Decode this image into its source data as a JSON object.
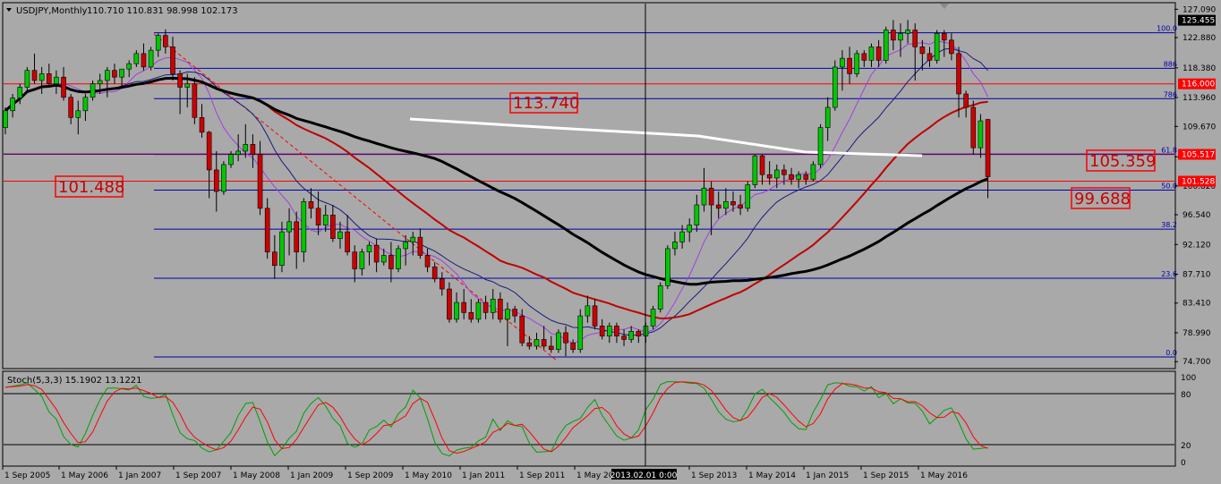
{
  "header": {
    "symbol_text": "USDJPY,Monthly",
    "ohlc_text": "110.710 110.831 98.998 102.173"
  },
  "oscillator": {
    "title": "Stoch(5,3,3) 15.1902 13.1221",
    "levels": [
      {
        "label": "100",
        "value": 100,
        "line": false
      },
      {
        "label": "80",
        "value": 80,
        "line": true
      },
      {
        "label": "20",
        "value": 20,
        "line": true
      },
      {
        "label": "0",
        "value": 0,
        "line": false
      }
    ]
  },
  "crosshair_label": "2013.02.01 0:00",
  "chart_data": {
    "type": "candlestick",
    "y_ticks": [
      "127.090",
      "122.880",
      "118.380",
      "113.960",
      "109.670",
      "105.150",
      "100.820",
      "96.540",
      "92.120",
      "87.710",
      "83.410",
      "78.990",
      "74.700"
    ],
    "ylim": [
      73.8,
      127.8
    ],
    "x_ticks": [
      "1 Sep 2005",
      "1 May 2006",
      "1 Jan 2007",
      "1 Sep 2007",
      "1 May 2008",
      "1 Jan 2009",
      "1 Sep 2009",
      "1 May 2010",
      "1 Jan 2011",
      "1 Sep 2011",
      "1 May 20",
      "1 Sep 2013",
      "1 May 2014",
      "1 Jan 2015",
      "1 Sep 2015",
      "1 May 2016"
    ],
    "candles": [
      {
        "o": 109.5,
        "h": 112.5,
        "l": 108.5,
        "c": 112.0
      },
      {
        "o": 112.0,
        "h": 114.5,
        "l": 111.0,
        "c": 113.9
      },
      {
        "o": 113.9,
        "h": 116.0,
        "l": 113.0,
        "c": 115.5
      },
      {
        "o": 115.5,
        "h": 118.5,
        "l": 115.0,
        "c": 118.0
      },
      {
        "o": 118.0,
        "h": 120.5,
        "l": 116.0,
        "c": 116.5
      },
      {
        "o": 116.5,
        "h": 118.5,
        "l": 114.5,
        "c": 117.5
      },
      {
        "o": 117.5,
        "h": 119.0,
        "l": 115.5,
        "c": 116.0
      },
      {
        "o": 116.0,
        "h": 118.0,
        "l": 114.5,
        "c": 117.0
      },
      {
        "o": 117.0,
        "h": 118.5,
        "l": 113.5,
        "c": 114.0
      },
      {
        "o": 114.0,
        "h": 114.5,
        "l": 110.0,
        "c": 111.0
      },
      {
        "o": 111.0,
        "h": 113.5,
        "l": 108.5,
        "c": 112.0
      },
      {
        "o": 112.0,
        "h": 114.5,
        "l": 110.5,
        "c": 114.0
      },
      {
        "o": 114.0,
        "h": 116.5,
        "l": 113.5,
        "c": 116.0
      },
      {
        "o": 116.0,
        "h": 117.5,
        "l": 114.5,
        "c": 116.5
      },
      {
        "o": 116.5,
        "h": 118.5,
        "l": 114.0,
        "c": 118.0
      },
      {
        "o": 118.0,
        "h": 119.0,
        "l": 116.0,
        "c": 117.0
      },
      {
        "o": 117.0,
        "h": 118.0,
        "l": 115.5,
        "c": 118.2
      },
      {
        "o": 118.2,
        "h": 119.5,
        "l": 117.0,
        "c": 119.0
      },
      {
        "o": 119.0,
        "h": 121.0,
        "l": 118.5,
        "c": 120.5
      },
      {
        "o": 120.5,
        "h": 122.0,
        "l": 118.0,
        "c": 118.5
      },
      {
        "o": 118.5,
        "h": 121.5,
        "l": 118.0,
        "c": 121.0
      },
      {
        "o": 121.0,
        "h": 123.5,
        "l": 120.0,
        "c": 123.2
      },
      {
        "o": 123.2,
        "h": 124.1,
        "l": 120.5,
        "c": 121.5
      },
      {
        "o": 121.5,
        "h": 123.0,
        "l": 116.5,
        "c": 117.5
      },
      {
        "o": 117.5,
        "h": 118.0,
        "l": 111.5,
        "c": 115.5
      },
      {
        "o": 115.5,
        "h": 117.5,
        "l": 112.5,
        "c": 116.0
      },
      {
        "o": 116.0,
        "h": 117.0,
        "l": 110.0,
        "c": 111.0
      },
      {
        "o": 111.0,
        "h": 113.0,
        "l": 108.0,
        "c": 108.8
      },
      {
        "o": 108.8,
        "h": 109.0,
        "l": 99.0,
        "c": 103.2
      },
      {
        "o": 103.2,
        "h": 106.0,
        "l": 97.0,
        "c": 100.0
      },
      {
        "o": 100.0,
        "h": 104.5,
        "l": 99.5,
        "c": 104.0
      },
      {
        "o": 104.0,
        "h": 106.0,
        "l": 103.5,
        "c": 105.5
      },
      {
        "o": 105.5,
        "h": 108.5,
        "l": 104.5,
        "c": 106.0
      },
      {
        "o": 106.0,
        "h": 110.0,
        "l": 105.0,
        "c": 107.0
      },
      {
        "o": 107.0,
        "h": 108.5,
        "l": 103.5,
        "c": 105.5
      },
      {
        "o": 105.5,
        "h": 107.5,
        "l": 96.5,
        "c": 97.5
      },
      {
        "o": 97.5,
        "h": 99.0,
        "l": 90.0,
        "c": 91.0
      },
      {
        "o": 91.0,
        "h": 93.5,
        "l": 87.0,
        "c": 89.0
      },
      {
        "o": 89.0,
        "h": 95.5,
        "l": 88.0,
        "c": 94.0
      },
      {
        "o": 94.0,
        "h": 97.5,
        "l": 90.5,
        "c": 95.5
      },
      {
        "o": 95.5,
        "h": 97.0,
        "l": 88.5,
        "c": 91.0
      },
      {
        "o": 91.0,
        "h": 99.0,
        "l": 89.5,
        "c": 98.5
      },
      {
        "o": 98.5,
        "h": 100.5,
        "l": 96.0,
        "c": 97.5
      },
      {
        "o": 97.5,
        "h": 100.0,
        "l": 93.5,
        "c": 95.0
      },
      {
        "o": 95.0,
        "h": 98.0,
        "l": 94.0,
        "c": 96.5
      },
      {
        "o": 96.5,
        "h": 98.0,
        "l": 92.5,
        "c": 93.0
      },
      {
        "o": 93.0,
        "h": 95.5,
        "l": 91.5,
        "c": 94.0
      },
      {
        "o": 94.0,
        "h": 96.5,
        "l": 90.5,
        "c": 91.0
      },
      {
        "o": 91.0,
        "h": 92.0,
        "l": 86.5,
        "c": 88.5
      },
      {
        "o": 88.5,
        "h": 91.5,
        "l": 87.5,
        "c": 91.0
      },
      {
        "o": 91.0,
        "h": 92.5,
        "l": 89.0,
        "c": 92.0
      },
      {
        "o": 92.0,
        "h": 93.0,
        "l": 88.0,
        "c": 89.5
      },
      {
        "o": 89.5,
        "h": 91.5,
        "l": 89.0,
        "c": 90.5
      },
      {
        "o": 90.5,
        "h": 92.5,
        "l": 86.5,
        "c": 88.5
      },
      {
        "o": 88.5,
        "h": 92.0,
        "l": 88.0,
        "c": 91.5
      },
      {
        "o": 91.5,
        "h": 93.5,
        "l": 89.0,
        "c": 92.5
      },
      {
        "o": 92.5,
        "h": 94.0,
        "l": 90.5,
        "c": 93.2
      },
      {
        "o": 93.2,
        "h": 94.5,
        "l": 90.0,
        "c": 90.5
      },
      {
        "o": 90.5,
        "h": 91.5,
        "l": 88.0,
        "c": 88.8
      },
      {
        "o": 88.8,
        "h": 89.5,
        "l": 86.5,
        "c": 87.0
      },
      {
        "o": 87.0,
        "h": 88.0,
        "l": 84.5,
        "c": 85.5
      },
      {
        "o": 85.5,
        "h": 86.5,
        "l": 80.5,
        "c": 81.0
      },
      {
        "o": 81.0,
        "h": 85.0,
        "l": 80.5,
        "c": 83.5
      },
      {
        "o": 83.5,
        "h": 85.5,
        "l": 81.0,
        "c": 82.0
      },
      {
        "o": 82.0,
        "h": 84.0,
        "l": 80.5,
        "c": 81.0
      },
      {
        "o": 81.0,
        "h": 84.0,
        "l": 80.5,
        "c": 83.5
      },
      {
        "o": 83.5,
        "h": 84.5,
        "l": 81.0,
        "c": 82.0
      },
      {
        "o": 82.0,
        "h": 85.5,
        "l": 81.0,
        "c": 84.0
      },
      {
        "o": 84.0,
        "h": 85.0,
        "l": 80.5,
        "c": 81.0
      },
      {
        "o": 81.0,
        "h": 83.5,
        "l": 77.0,
        "c": 82.5
      },
      {
        "o": 82.5,
        "h": 83.0,
        "l": 80.5,
        "c": 81.5
      },
      {
        "o": 81.5,
        "h": 82.5,
        "l": 77.0,
        "c": 77.5
      },
      {
        "o": 77.5,
        "h": 78.5,
        "l": 76.5,
        "c": 77.0
      },
      {
        "o": 77.0,
        "h": 79.0,
        "l": 76.5,
        "c": 78.0
      },
      {
        "o": 78.0,
        "h": 80.0,
        "l": 76.5,
        "c": 77.0
      },
      {
        "o": 77.0,
        "h": 78.5,
        "l": 76.0,
        "c": 76.5
      },
      {
        "o": 76.5,
        "h": 79.5,
        "l": 76.0,
        "c": 79.0
      },
      {
        "o": 79.0,
        "h": 80.0,
        "l": 75.5,
        "c": 77.5
      },
      {
        "o": 77.5,
        "h": 78.0,
        "l": 76.0,
        "c": 76.5
      },
      {
        "o": 76.5,
        "h": 82.5,
        "l": 76.0,
        "c": 81.5
      },
      {
        "o": 81.5,
        "h": 84.5,
        "l": 80.5,
        "c": 83.0
      },
      {
        "o": 83.0,
        "h": 84.0,
        "l": 79.5,
        "c": 80.0
      },
      {
        "o": 80.0,
        "h": 81.0,
        "l": 78.0,
        "c": 78.5
      },
      {
        "o": 78.5,
        "h": 80.5,
        "l": 77.5,
        "c": 80.0
      },
      {
        "o": 80.0,
        "h": 80.5,
        "l": 77.5,
        "c": 78.5
      },
      {
        "o": 78.5,
        "h": 79.5,
        "l": 77.0,
        "c": 78.0
      },
      {
        "o": 78.0,
        "h": 80.0,
        "l": 77.5,
        "c": 79.2
      },
      {
        "o": 79.2,
        "h": 79.5,
        "l": 77.5,
        "c": 78.5
      },
      {
        "o": 78.5,
        "h": 80.5,
        "l": 77.5,
        "c": 80.0
      },
      {
        "o": 80.0,
        "h": 83.0,
        "l": 79.5,
        "c": 82.5
      },
      {
        "o": 82.5,
        "h": 86.5,
        "l": 82.0,
        "c": 86.0
      },
      {
        "o": 86.0,
        "h": 92.0,
        "l": 85.5,
        "c": 91.5
      },
      {
        "o": 91.5,
        "h": 94.0,
        "l": 90.5,
        "c": 92.5
      },
      {
        "o": 92.5,
        "h": 95.0,
        "l": 91.5,
        "c": 94.0
      },
      {
        "o": 94.0,
        "h": 96.0,
        "l": 92.5,
        "c": 95.0
      },
      {
        "o": 95.0,
        "h": 99.5,
        "l": 94.0,
        "c": 98.0
      },
      {
        "o": 98.0,
        "h": 103.5,
        "l": 97.0,
        "c": 100.5
      },
      {
        "o": 100.5,
        "h": 101.5,
        "l": 93.5,
        "c": 98.0
      },
      {
        "o": 98.0,
        "h": 100.0,
        "l": 96.0,
        "c": 97.5
      },
      {
        "o": 97.5,
        "h": 100.5,
        "l": 96.5,
        "c": 98.5
      },
      {
        "o": 98.5,
        "h": 100.0,
        "l": 97.0,
        "c": 98.0
      },
      {
        "o": 98.0,
        "h": 99.5,
        "l": 96.5,
        "c": 97.5
      },
      {
        "o": 97.5,
        "h": 101.5,
        "l": 97.0,
        "c": 101.0
      },
      {
        "o": 101.0,
        "h": 105.5,
        "l": 100.5,
        "c": 105.3
      },
      {
        "o": 105.3,
        "h": 105.5,
        "l": 101.0,
        "c": 102.5
      },
      {
        "o": 102.5,
        "h": 104.5,
        "l": 101.0,
        "c": 102.0
      },
      {
        "o": 102.0,
        "h": 104.0,
        "l": 100.5,
        "c": 103.2
      },
      {
        "o": 103.2,
        "h": 104.0,
        "l": 101.0,
        "c": 102.5
      },
      {
        "o": 102.5,
        "h": 103.5,
        "l": 101.0,
        "c": 101.8
      },
      {
        "o": 101.8,
        "h": 103.0,
        "l": 100.5,
        "c": 102.5
      },
      {
        "o": 102.5,
        "h": 103.0,
        "l": 101.0,
        "c": 101.8
      },
      {
        "o": 101.8,
        "h": 104.5,
        "l": 101.5,
        "c": 104.0
      },
      {
        "o": 104.0,
        "h": 110.0,
        "l": 103.5,
        "c": 109.5
      },
      {
        "o": 109.5,
        "h": 114.0,
        "l": 107.5,
        "c": 112.5
      },
      {
        "o": 112.5,
        "h": 119.5,
        "l": 112.0,
        "c": 118.5
      },
      {
        "o": 118.5,
        "h": 121.0,
        "l": 115.0,
        "c": 119.8
      },
      {
        "o": 119.8,
        "h": 121.5,
        "l": 116.0,
        "c": 117.5
      },
      {
        "o": 117.5,
        "h": 121.0,
        "l": 117.0,
        "c": 120.5
      },
      {
        "o": 120.5,
        "h": 121.0,
        "l": 118.5,
        "c": 119.5
      },
      {
        "o": 119.5,
        "h": 122.0,
        "l": 118.5,
        "c": 121.5
      },
      {
        "o": 121.5,
        "h": 122.5,
        "l": 118.5,
        "c": 119.5
      },
      {
        "o": 119.5,
        "h": 124.5,
        "l": 119.0,
        "c": 124.0
      },
      {
        "o": 124.0,
        "h": 125.5,
        "l": 121.0,
        "c": 122.5
      },
      {
        "o": 122.5,
        "h": 125.0,
        "l": 120.0,
        "c": 123.5
      },
      {
        "o": 123.5,
        "h": 125.5,
        "l": 122.0,
        "c": 124.0
      },
      {
        "o": 124.0,
        "h": 125.0,
        "l": 116.5,
        "c": 121.5
      },
      {
        "o": 121.5,
        "h": 122.5,
        "l": 118.0,
        "c": 120.5
      },
      {
        "o": 120.5,
        "h": 121.5,
        "l": 118.5,
        "c": 119.5
      },
      {
        "o": 119.5,
        "h": 124.0,
        "l": 119.0,
        "c": 123.5
      },
      {
        "o": 123.5,
        "h": 124.0,
        "l": 120.0,
        "c": 122.5
      },
      {
        "o": 122.5,
        "h": 123.5,
        "l": 119.5,
        "c": 120.5
      },
      {
        "o": 120.5,
        "h": 121.5,
        "l": 111.0,
        "c": 114.5
      },
      {
        "o": 114.5,
        "h": 115.0,
        "l": 111.0,
        "c": 112.5
      },
      {
        "o": 112.5,
        "h": 113.5,
        "l": 105.5,
        "c": 106.5
      },
      {
        "o": 106.5,
        "h": 111.5,
        "l": 105.0,
        "c": 110.5
      },
      {
        "o": 110.7,
        "h": 110.8,
        "l": 99.0,
        "c": 102.2
      }
    ],
    "fib_levels": [
      {
        "label": "100.0",
        "value": 123.6
      },
      {
        "label": "886",
        "value": 118.3
      },
      {
        "label": "786",
        "value": 113.8
      },
      {
        "label": "61.8",
        "value": 105.5
      },
      {
        "label": "50.0",
        "value": 100.2
      },
      {
        "label": "38.2",
        "value": 94.4
      },
      {
        "label": "23.6",
        "value": 87.1
      },
      {
        "label": "0.0",
        "value": 75.4
      }
    ],
    "horizontal_lines": [
      {
        "label": "116.000",
        "value": 116.0
      },
      {
        "label": "105.517",
        "value": 105.52
      },
      {
        "label": "101.528",
        "value": 101.53
      }
    ],
    "price_labels": [
      {
        "text": "125.455",
        "value": 125.455
      },
      {
        "text": "116.000",
        "value": 116.0
      },
      {
        "text": "105.517",
        "value": 105.517
      },
      {
        "text": "101.528",
        "value": 101.528
      }
    ],
    "annotations": [
      "113.740",
      "101.488",
      "105.359",
      "99.688"
    ],
    "colors": {
      "background": "#a9a9a9",
      "bull": "#00c800",
      "bear": "#cc0000",
      "fib": "#0000aa",
      "hline": "#ff0000",
      "ma_black": "#000000",
      "ma_red": "#c00000",
      "ma_blue": "#1a1a80",
      "ma_violet": "#a040e0",
      "ma_white": "#ffffff",
      "stoch_main": "#00a000",
      "stoch_signal": "#ff0000"
    }
  }
}
